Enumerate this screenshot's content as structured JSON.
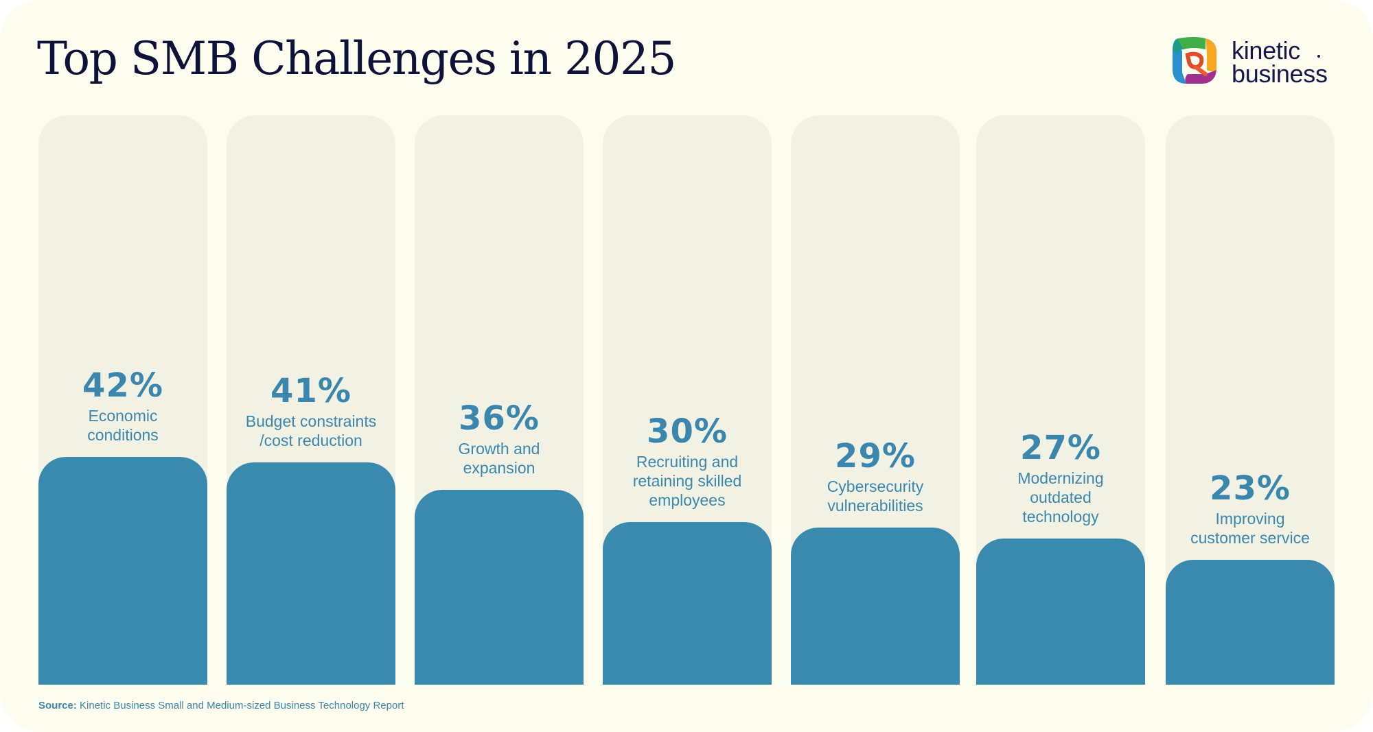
{
  "header": {
    "title": "Top SMB Challenges in 2025"
  },
  "logo": {
    "line1": "kinetic",
    "line2": "business",
    "colors": [
      "#3fae49",
      "#f7a823",
      "#e04b2a",
      "#a2308f",
      "#2a8fcd"
    ]
  },
  "colors": {
    "background": "#fdfdef",
    "track": "#f2f2e4",
    "bar": "#3a8ab0",
    "text": "#3a86ad",
    "title": "#0f1238"
  },
  "chart_data": {
    "type": "bar",
    "title": "Top SMB Challenges in 2025",
    "xlabel": "",
    "ylabel": "",
    "ylim": [
      0,
      100
    ],
    "grid": false,
    "categories": [
      "Economic\nconditions",
      "Budget constraints\n/cost reduction",
      "Growth and\nexpansion",
      "Recruiting and\nretaining skilled\nemployees",
      "Cybersecurity\nvulnerabilities",
      "Modernizing\noutdated\ntechnology",
      "Improving\ncustomer service"
    ],
    "values": [
      42,
      41,
      36,
      30,
      29,
      27,
      23
    ],
    "value_labels": [
      "42%",
      "41%",
      "36%",
      "30%",
      "29%",
      "27%",
      "23%"
    ]
  },
  "footer": {
    "source_label": "Source:",
    "source_text": "Kinetic Business Small and Medium-sized Business Technology Report"
  }
}
